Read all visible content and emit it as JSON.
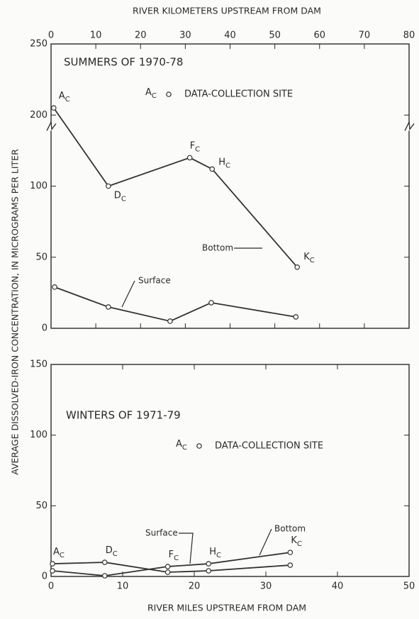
{
  "chart_data": [
    {
      "type": "line",
      "title": "SUMMERS OF 1970-78",
      "ylabel": "AVERAGE DISSOLVED-IRON CONCENTRATION, IN MICROGRAMS PER LITER",
      "x2label": "RIVER KILOMETERS UPSTREAM FROM DAM",
      "xlim": [
        0,
        80
      ],
      "xticks": [
        0,
        10,
        20,
        30,
        40,
        50,
        60,
        70,
        80
      ],
      "ylim": [
        0,
        250
      ],
      "yticks": [
        0,
        50,
        100,
        200,
        250
      ],
      "ybreak": [
        140,
        190
      ],
      "point_labels": [
        "A",
        "D",
        "F",
        "H",
        "K"
      ],
      "point_label_subscript": "C",
      "legend": {
        "letter": "A",
        "sub": "C",
        "text": "DATA-COLLECTION SITE"
      },
      "series": [
        {
          "name": "Bottom",
          "color": "#333333",
          "x": [
            0.6,
            12.8,
            31,
            36,
            55
          ],
          "values": [
            205,
            100,
            120,
            112,
            43
          ]
        },
        {
          "name": "Surface",
          "color": "#333333",
          "x": [
            0.8,
            12.8,
            26.6,
            35.8,
            54.7
          ],
          "values": [
            29,
            15,
            5,
            18,
            8
          ]
        }
      ]
    },
    {
      "type": "line",
      "title": "WINTERS OF 1971-79",
      "xlabel": "RIVER MILES UPSTREAM FROM DAM",
      "xlim": [
        0,
        50
      ],
      "xticks": [
        0,
        10,
        20,
        30,
        40,
        50
      ],
      "ylim": [
        0,
        150
      ],
      "yticks": [
        0,
        50,
        100,
        150
      ],
      "point_labels": [
        "A",
        "D",
        "F",
        "H",
        "K"
      ],
      "point_label_subscript": "C",
      "legend": {
        "letter": "A",
        "sub": "C",
        "text": "DATA-COLLECTION SITE"
      },
      "series": [
        {
          "name": "Surface",
          "color": "#333333",
          "x": [
            0.2,
            7.5,
            16.3,
            22,
            33.4
          ],
          "values": [
            9,
            10,
            3,
            4,
            8
          ]
        },
        {
          "name": "Bottom",
          "color": "#333333",
          "x": [
            0.2,
            7.5,
            16.3,
            22,
            33.4
          ],
          "values": [
            4,
            0.5,
            7,
            9,
            17
          ]
        }
      ]
    }
  ]
}
